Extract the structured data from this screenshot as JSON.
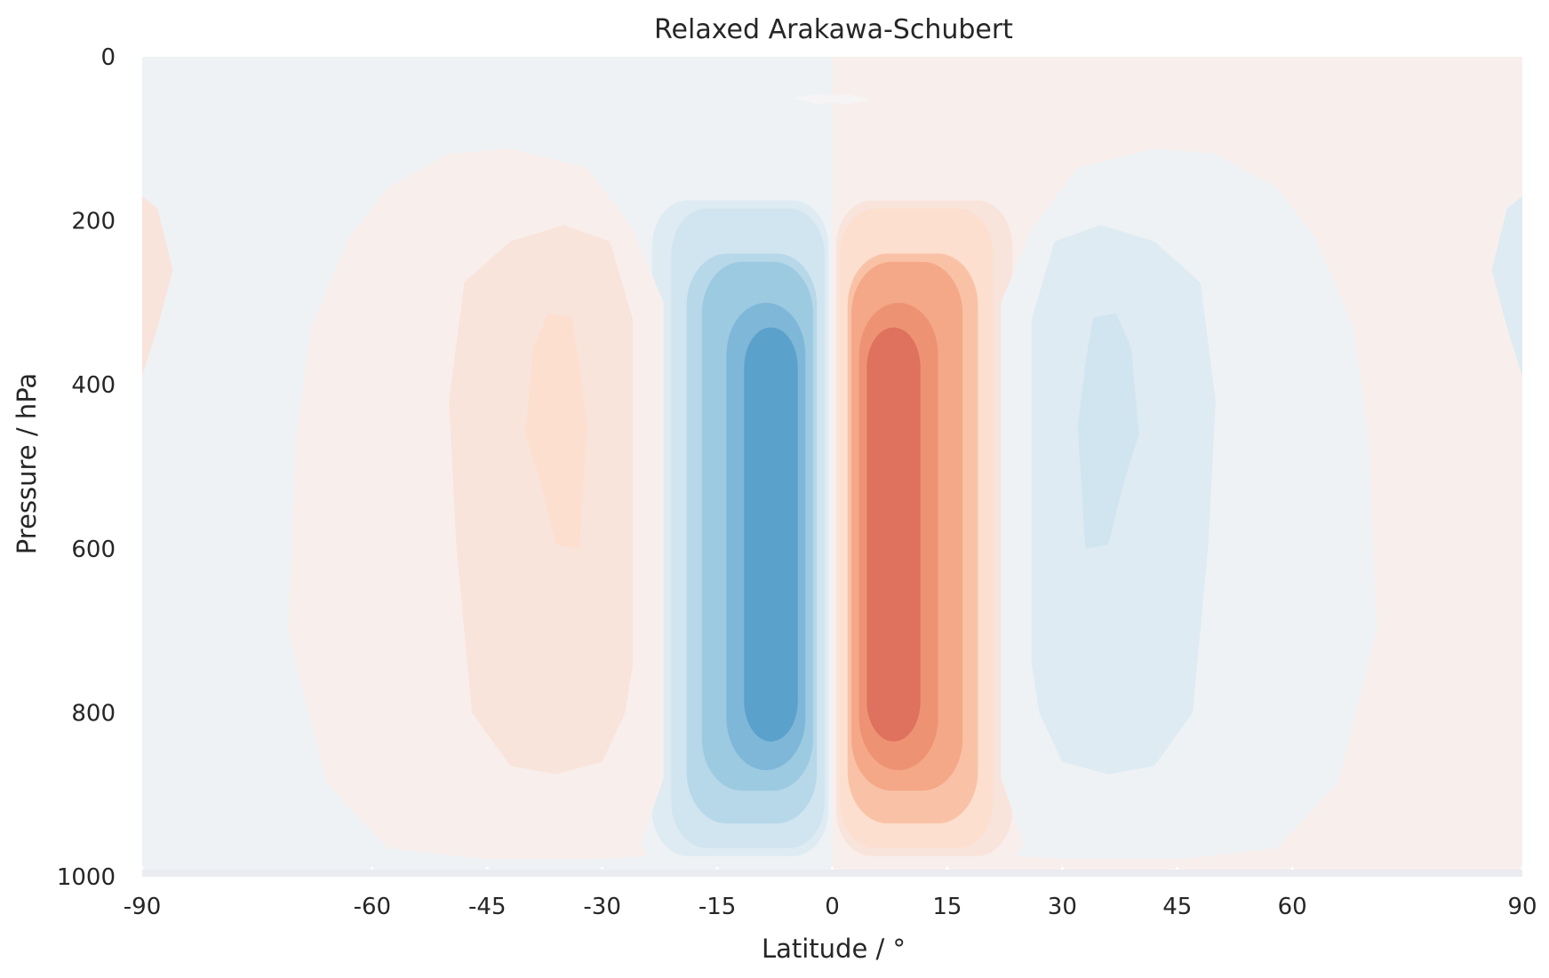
{
  "chart_data": {
    "type": "contour",
    "title": "Relaxed Arakawa-Schubert",
    "xlabel": "Latitude / °",
    "ylabel": "Pressure / hPa",
    "xlim": [
      -90,
      90
    ],
    "ylim": [
      1000,
      0
    ],
    "y_inverted": true,
    "xticks": [
      -90,
      -60,
      -45,
      -30,
      -15,
      0,
      15,
      30,
      45,
      60,
      90
    ],
    "yticks": [
      0,
      200,
      400,
      600,
      800,
      1000
    ],
    "colormap": "RdBu_r",
    "colors": {
      "neg": [
        "#eef2f5",
        "#deebf2",
        "#d1e5f0",
        "#b6d8e9",
        "#9ccae1",
        "#7fb7d8",
        "#5aa1cb"
      ],
      "pos": [
        "#f8efec",
        "#f9e4dc",
        "#fcdfcf",
        "#f9c2a7",
        "#f4a887",
        "#ed9373",
        "#de725e"
      ],
      "tick": "#ebebf2",
      "text": "#262626"
    },
    "series": [
      {
        "name": "",
        "sign": -1,
        "center_lat": -8,
        "center_p": 600,
        "levels": 7
      },
      {
        "name": "",
        "sign": 1,
        "center_lat": 8,
        "center_p": 600,
        "levels": 7
      },
      {
        "name": "",
        "sign": 1,
        "center_lat": -35,
        "center_p": 450,
        "levels": 3
      },
      {
        "name": "",
        "sign": -1,
        "center_lat": 35,
        "center_p": 450,
        "levels": 3
      }
    ]
  }
}
